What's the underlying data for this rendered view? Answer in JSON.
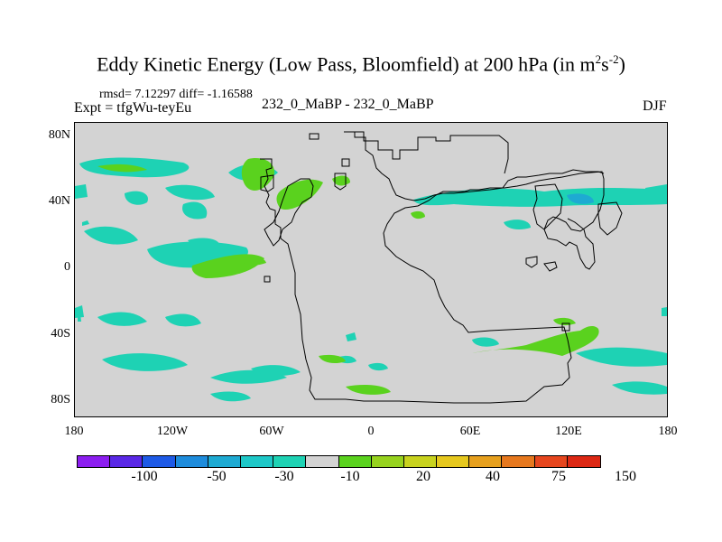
{
  "title": {
    "main": "Eddy Kinetic Energy (Low Pass, Bloomfield) at 200 hPa (in m",
    "sup1": "2",
    "mid": "s",
    "sup2": "-2",
    "end": ")"
  },
  "stats": {
    "rmsd": "rmsd= 7.12297 diff= -1.16588",
    "expt": "Expt = tfgWu-teyEu"
  },
  "experiment_name": "232_0_MaBP - 232_0_MaBP",
  "season": "DJF",
  "axes": {
    "lat_labels": [
      "80N",
      "40N",
      "0",
      "40S",
      "80S"
    ],
    "lon_labels": [
      "180",
      "120W",
      "60W",
      "0",
      "60E",
      "120E",
      "180"
    ]
  },
  "colorbar": {
    "colors": [
      "#8c1ef0",
      "#5a28e6",
      "#1e5ae6",
      "#1e8cdc",
      "#1eaad2",
      "#1ec8c8",
      "#1ed2b4",
      "#d3d3d3",
      "#5ad21e",
      "#96d21e",
      "#c8d21e",
      "#e6c81e",
      "#e6a01e",
      "#e6781e",
      "#e6461e",
      "#dc2814"
    ],
    "labels": [
      "-100",
      "-50",
      "-30",
      "-10",
      "20",
      "40",
      "75",
      "150"
    ]
  },
  "colors": {
    "background": "#d3d3d3",
    "positive": "#5ad21e",
    "negative": "#1ed2b4",
    "strong_negative": "#1eaad2"
  }
}
